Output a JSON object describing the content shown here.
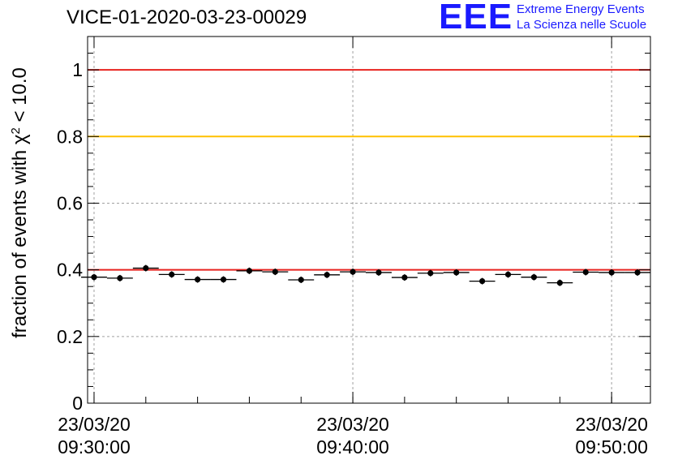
{
  "header": {
    "title": "VICE-01-2020-03-23-00029",
    "logo_mark": "EEE",
    "logo_line1": "Extreme Energy Events",
    "logo_line2": "La Scienza nelle Scuole"
  },
  "colors": {
    "red_line": "#e8231f",
    "yellow_line": "#ffc000",
    "points": "#000000",
    "grid": "#a0a0a0",
    "logo": "#1a1aff"
  },
  "chart_data": {
    "type": "scatter",
    "title": "VICE-01-2020-03-23-00029",
    "ylabel_main": "fraction of events with ",
    "ylabel_chi": "χ",
    "ylabel_sup": "2",
    "ylabel_tail": " < 10.0",
    "xlabel": "",
    "x_unit": "minutes after 23/03/20 09:30:00",
    "xlim": [
      -0.25,
      21.5
    ],
    "ylim": [
      0,
      1.1
    ],
    "yticks": [
      0,
      0.2,
      0.4,
      0.6,
      0.8,
      1
    ],
    "ytick_labels": [
      "0",
      "0.2",
      "0.4",
      "0.6",
      "0.8",
      "1"
    ],
    "xticks": [
      {
        "value": 0,
        "line1": "23/03/20",
        "line2": "09:30:00"
      },
      {
        "value": 10,
        "line1": "23/03/20",
        "line2": "09:40:00"
      },
      {
        "value": 20,
        "line1": "23/03/20",
        "line2": "09:50:00"
      }
    ],
    "minor_xticks": [
      0,
      2,
      4,
      6,
      8,
      10,
      12,
      14,
      16,
      18,
      20
    ],
    "grid": true,
    "reference_lines": [
      {
        "y": 1.0,
        "color": "#e8231f"
      },
      {
        "y": 0.8,
        "color": "#ffc000"
      },
      {
        "y": 0.4,
        "color": "#e8231f"
      }
    ],
    "points": {
      "x": [
        0,
        1,
        2,
        3,
        4,
        5,
        6,
        7,
        8,
        9,
        10,
        11,
        12,
        13,
        14,
        15,
        16,
        17,
        18,
        19,
        20,
        21
      ],
      "y": [
        0.378,
        0.375,
        0.405,
        0.386,
        0.371,
        0.371,
        0.397,
        0.394,
        0.37,
        0.385,
        0.394,
        0.392,
        0.377,
        0.39,
        0.392,
        0.366,
        0.386,
        0.378,
        0.361,
        0.393,
        0.392,
        0.392
      ],
      "bin_width": 1
    }
  }
}
